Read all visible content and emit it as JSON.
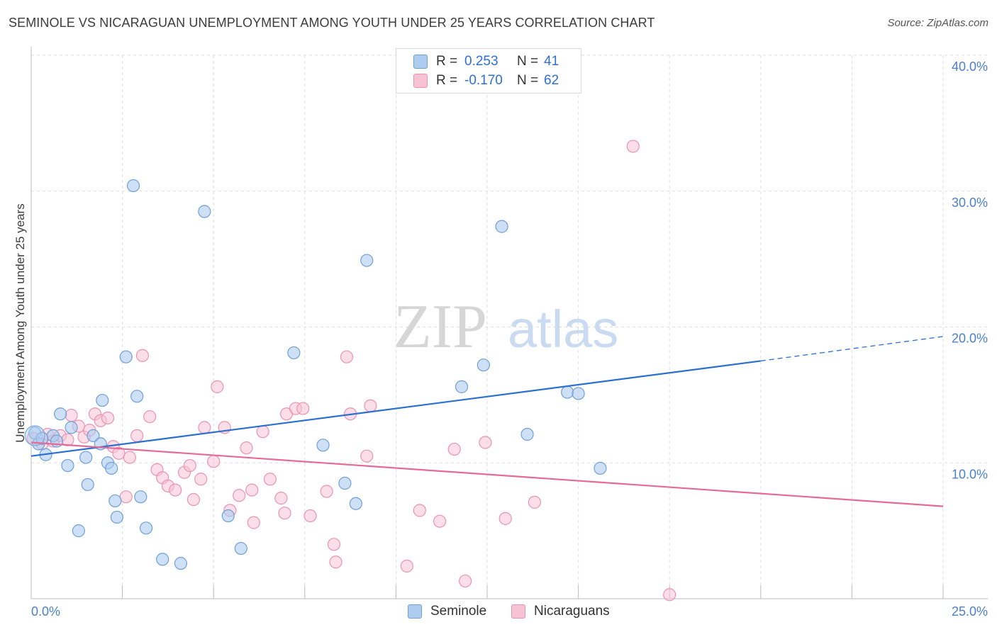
{
  "title": "SEMINOLE VS NICARAGUAN UNEMPLOYMENT AMONG YOUTH UNDER 25 YEARS CORRELATION CHART",
  "source": "Source: ZipAtlas.com",
  "watermark": {
    "zip": "ZIP",
    "atlas": "atlas"
  },
  "legend_top": [
    {
      "r_label": "R =",
      "r_value": "0.253",
      "n_label": "N =",
      "n_value": "41"
    },
    {
      "r_label": "R =",
      "r_value": "-0.170",
      "n_label": "N =",
      "n_value": "62"
    }
  ],
  "legend_bottom": [
    {
      "name": "Seminole"
    },
    {
      "name": "Nicaraguans"
    }
  ],
  "colors": {
    "seminole_fill": "#aecbf0",
    "seminole_stroke": "#6f9fd8",
    "seminole_line": "#2b6fd0",
    "nicaraguan_fill": "#f7c3d3",
    "nicaraguan_stroke": "#ea93b0",
    "nicaraguan_line": "#e56b97",
    "axis_text": "#4a7fd0",
    "grid": "#dedede"
  },
  "chart_data": {
    "type": "scatter",
    "title": "SEMINOLE VS NICARAGUAN UNEMPLOYMENT AMONG YOUTH UNDER 25 YEARS CORRELATION CHART",
    "xlabel": "",
    "ylabel": "Unemployment Among Youth under 25 years",
    "xlim": [
      0,
      25
    ],
    "ylim": [
      0,
      40
    ],
    "x_tick_labels": [
      "0.0%",
      "25.0%"
    ],
    "y_ticks": [
      10,
      20,
      30,
      40
    ],
    "y_tick_labels": [
      "10.0%",
      "20.0%",
      "30.0%",
      "40.0%"
    ],
    "grid": true,
    "legend_placement": "top-center",
    "series": [
      {
        "name": "Seminole",
        "points": [
          [
            0.1,
            12.2
          ],
          [
            0.2,
            11.4
          ],
          [
            0.3,
            11.8
          ],
          [
            0.4,
            10.6
          ],
          [
            0.6,
            12.0
          ],
          [
            0.7,
            11.6
          ],
          [
            0.8,
            13.6
          ],
          [
            1.0,
            9.8
          ],
          [
            1.1,
            12.6
          ],
          [
            1.3,
            5.0
          ],
          [
            1.5,
            10.4
          ],
          [
            1.55,
            8.4
          ],
          [
            1.7,
            12.0
          ],
          [
            1.9,
            11.4
          ],
          [
            1.95,
            14.6
          ],
          [
            2.1,
            10.0
          ],
          [
            2.2,
            9.6
          ],
          [
            2.35,
            6.0
          ],
          [
            2.3,
            7.2
          ],
          [
            2.6,
            17.8
          ],
          [
            2.8,
            30.4
          ],
          [
            2.9,
            14.9
          ],
          [
            3.0,
            7.5
          ],
          [
            3.15,
            5.2
          ],
          [
            3.6,
            2.9
          ],
          [
            4.1,
            2.6
          ],
          [
            4.75,
            28.5
          ],
          [
            5.4,
            6.1
          ],
          [
            5.75,
            3.7
          ],
          [
            7.2,
            18.1
          ],
          [
            8.0,
            11.3
          ],
          [
            8.6,
            8.5
          ],
          [
            8.9,
            7.0
          ],
          [
            9.2,
            24.9
          ],
          [
            11.8,
            15.6
          ],
          [
            12.4,
            17.2
          ],
          [
            12.9,
            27.4
          ],
          [
            13.6,
            12.1
          ],
          [
            14.7,
            15.2
          ],
          [
            15.0,
            15.1
          ],
          [
            15.6,
            9.6
          ]
        ],
        "trend": {
          "x": [
            0,
            20
          ],
          "y": [
            10.5,
            17.5
          ],
          "dashed_extension": {
            "x": [
              20,
              25
            ],
            "y": [
              17.5,
              19.3
            ]
          }
        }
      },
      {
        "name": "Nicaraguans",
        "points": [
          [
            0.05,
            11.8
          ],
          [
            0.3,
            11.4
          ],
          [
            0.45,
            12.1
          ],
          [
            0.6,
            11.6
          ],
          [
            0.8,
            12.0
          ],
          [
            1.0,
            11.7
          ],
          [
            1.1,
            13.5
          ],
          [
            1.3,
            12.7
          ],
          [
            1.45,
            11.9
          ],
          [
            1.6,
            12.4
          ],
          [
            1.75,
            13.6
          ],
          [
            1.9,
            13.1
          ],
          [
            2.1,
            13.3
          ],
          [
            2.25,
            11.2
          ],
          [
            2.4,
            10.7
          ],
          [
            2.6,
            7.5
          ],
          [
            2.7,
            10.4
          ],
          [
            2.9,
            12.0
          ],
          [
            3.05,
            17.9
          ],
          [
            3.25,
            13.4
          ],
          [
            3.45,
            9.5
          ],
          [
            3.6,
            8.9
          ],
          [
            3.75,
            8.3
          ],
          [
            3.95,
            8.0
          ],
          [
            4.2,
            9.3
          ],
          [
            4.35,
            9.8
          ],
          [
            4.45,
            7.3
          ],
          [
            4.65,
            8.8
          ],
          [
            4.75,
            12.6
          ],
          [
            5.0,
            10.1
          ],
          [
            5.1,
            15.6
          ],
          [
            5.3,
            12.6
          ],
          [
            5.45,
            6.5
          ],
          [
            5.7,
            7.6
          ],
          [
            5.9,
            11.1
          ],
          [
            6.05,
            8.0
          ],
          [
            6.1,
            5.6
          ],
          [
            6.35,
            12.3
          ],
          [
            6.55,
            8.8
          ],
          [
            6.85,
            7.4
          ],
          [
            6.95,
            6.3
          ],
          [
            7.0,
            13.6
          ],
          [
            7.25,
            14.0
          ],
          [
            7.45,
            14.0
          ],
          [
            7.65,
            6.1
          ],
          [
            8.1,
            7.9
          ],
          [
            8.3,
            4.0
          ],
          [
            8.35,
            2.7
          ],
          [
            8.65,
            17.8
          ],
          [
            8.75,
            13.6
          ],
          [
            9.2,
            10.5
          ],
          [
            9.3,
            14.2
          ],
          [
            10.3,
            2.4
          ],
          [
            10.65,
            6.5
          ],
          [
            11.2,
            5.7
          ],
          [
            11.6,
            11.0
          ],
          [
            11.9,
            1.3
          ],
          [
            12.45,
            11.5
          ],
          [
            13.0,
            5.9
          ],
          [
            13.8,
            7.1
          ],
          [
            16.5,
            33.3
          ],
          [
            17.5,
            0.3
          ]
        ],
        "trend": {
          "x": [
            0,
            25
          ],
          "y": [
            11.5,
            6.8
          ]
        }
      }
    ]
  }
}
